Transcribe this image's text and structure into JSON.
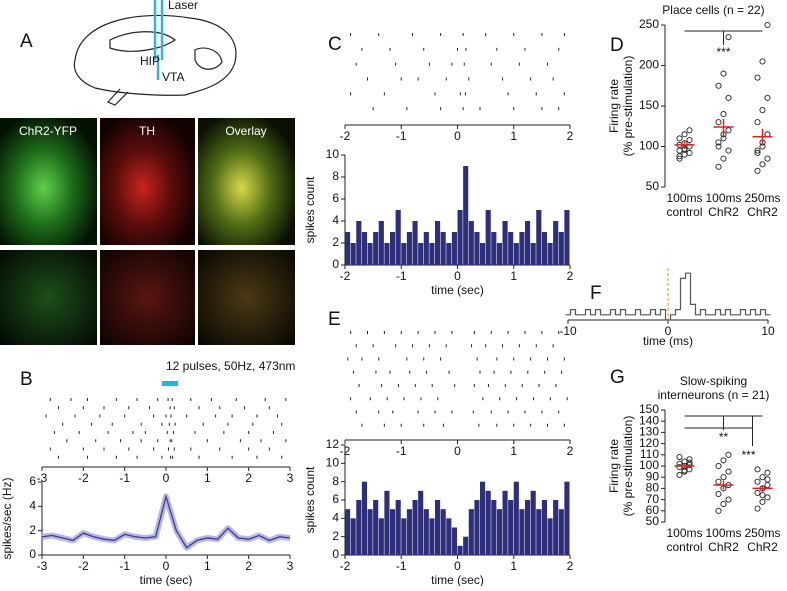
{
  "panel_labels": [
    "A",
    "B",
    "C",
    "D",
    "E",
    "F",
    "G"
  ],
  "figure_a": {
    "labels": [
      "Laser",
      "HIP",
      "VTA"
    ],
    "image_titles": [
      "ChR2-YFP",
      "TH",
      "Overlay"
    ]
  },
  "chart_data": [
    {
      "type": "raster",
      "annotation": "12 pulses, 50Hz, 473nm",
      "xlim": [
        -3,
        3
      ],
      "xticks": [
        -3,
        -2,
        -1,
        0,
        1,
        2,
        3
      ],
      "trials": [
        [
          -2.8,
          -2.3,
          -1.9,
          -1.2,
          -0.7,
          -0.2,
          0.05,
          0.15,
          0.6,
          1.1,
          1.7,
          2.4,
          2.9
        ],
        [
          -2.6,
          -2.0,
          -1.5,
          -0.9,
          -0.4,
          0.1,
          0.2,
          0.8,
          1.3,
          1.9,
          2.5
        ],
        [
          -2.9,
          -2.2,
          -1.6,
          -1.0,
          -0.3,
          0.0,
          0.12,
          0.5,
          1.2,
          1.6,
          2.2,
          2.7
        ],
        [
          -2.5,
          -1.8,
          -1.3,
          -0.6,
          -0.1,
          0.08,
          0.22,
          0.9,
          1.5,
          2.1,
          2.8
        ],
        [
          -2.7,
          -2.1,
          -1.4,
          -0.8,
          -0.5,
          0.03,
          0.18,
          0.7,
          1.4,
          2.0,
          2.6
        ],
        [
          -2.4,
          -1.7,
          -1.1,
          -0.6,
          -0.2,
          0.1,
          0.14,
          1.0,
          1.8,
          2.3,
          2.9
        ],
        [
          -2.8,
          -2.0,
          -1.5,
          -0.9,
          -0.3,
          0.06,
          0.2,
          0.6,
          1.3,
          2.0,
          2.5
        ],
        [
          -2.6,
          -1.9,
          -1.2,
          -0.7,
          -0.1,
          0.11,
          0.16,
          0.8,
          1.6,
          2.2,
          2.8
        ]
      ]
    },
    {
      "type": "line",
      "xlabel": "time (sec)",
      "ylabel": "spikes/sec (Hz)",
      "xlim": [
        -3,
        3
      ],
      "xticks": [
        -3,
        -2,
        -1,
        0,
        1,
        2,
        3
      ],
      "ylim": [
        0,
        6
      ],
      "yticks": [
        0,
        2,
        4,
        6
      ],
      "color": "#3b3b8c",
      "x": [
        -3,
        -2.75,
        -2.5,
        -2.25,
        -2,
        -1.75,
        -1.5,
        -1.25,
        -1,
        -0.75,
        -0.5,
        -0.25,
        0,
        0.25,
        0.5,
        0.75,
        1,
        1.25,
        1.5,
        1.75,
        2,
        2.25,
        2.5,
        2.75,
        3
      ],
      "values": [
        1.5,
        1.6,
        1.4,
        1.2,
        1.8,
        1.5,
        1.3,
        1.2,
        1.7,
        1.5,
        1.4,
        1.5,
        4.8,
        2.0,
        0.6,
        1.2,
        1.4,
        1.3,
        2.2,
        1.4,
        1.3,
        1.6,
        1.2,
        1.5,
        1.4
      ]
    },
    {
      "type": "raster",
      "xlim": [
        -2,
        2
      ],
      "xticks": [
        -2,
        -1,
        0,
        1,
        2
      ],
      "trials": [
        [
          -1.9,
          -1.4,
          -0.8,
          -0.3,
          0.1,
          0.5,
          1.0,
          1.5,
          1.9
        ],
        [
          -1.7,
          -1.2,
          -0.6,
          0.0,
          0.15,
          0.7,
          1.2,
          1.8
        ],
        [
          -1.8,
          -1.1,
          -0.5,
          -0.1,
          0.12,
          0.6,
          1.1,
          1.6
        ],
        [
          -1.6,
          -1.0,
          -0.7,
          -0.2,
          0.2,
          0.8,
          1.3,
          1.7
        ],
        [
          -1.9,
          -1.3,
          -0.4,
          0.05,
          0.14,
          0.9,
          1.4,
          1.9
        ],
        [
          -1.5,
          -0.9,
          -0.3,
          0.1,
          0.4,
          1.0,
          1.5,
          1.8
        ]
      ]
    },
    {
      "type": "histogram",
      "xlabel": "time (sec)",
      "ylabel": "spikes count",
      "xlim": [
        -2,
        2
      ],
      "xticks": [
        -2,
        -1,
        0,
        1,
        2
      ],
      "ylim": [
        0,
        10
      ],
      "yticks": [
        0,
        2,
        4,
        6,
        8,
        10
      ],
      "color": "#2e2e7a",
      "bins": [
        -2,
        -1.9,
        -1.8,
        -1.7,
        -1.6,
        -1.5,
        -1.4,
        -1.3,
        -1.2,
        -1.1,
        -1,
        -0.9,
        -0.8,
        -0.7,
        -0.6,
        -0.5,
        -0.4,
        -0.3,
        -0.2,
        -0.1,
        0,
        0.1,
        0.2,
        0.3,
        0.4,
        0.5,
        0.6,
        0.7,
        0.8,
        0.9,
        1,
        1.1,
        1.2,
        1.3,
        1.4,
        1.5,
        1.6,
        1.7,
        1.8,
        1.9,
        2
      ],
      "values": [
        3,
        2,
        4,
        3,
        2,
        3,
        4,
        2,
        3,
        5,
        2,
        3,
        4,
        2,
        3,
        2,
        4,
        3,
        2,
        3,
        5,
        9,
        4,
        3,
        2,
        5,
        3,
        2,
        4,
        3,
        2,
        3,
        4,
        2,
        5,
        3,
        2,
        4,
        3,
        5
      ]
    },
    {
      "type": "dot",
      "title": "Place cells (n = 22)",
      "ylabel": [
        "Firing rate",
        "(% pre-stimulation)"
      ],
      "categories": [
        "100ms",
        "100ms",
        "250ms"
      ],
      "category_sublabels": [
        "control",
        "ChR2",
        "ChR2"
      ],
      "ylim": [
        50,
        250
      ],
      "yticks": [
        50,
        100,
        150,
        200,
        250
      ],
      "annotations": [
        "***"
      ],
      "groups": [
        [
          85,
          90,
          92,
          95,
          97,
          100,
          102,
          104,
          108,
          110,
          115,
          120,
          88,
          96
        ],
        [
          75,
          85,
          95,
          100,
          110,
          120,
          130,
          140,
          160,
          175,
          190,
          235,
          105,
          115
        ],
        [
          70,
          78,
          85,
          95,
          105,
          115,
          130,
          145,
          160,
          185,
          205,
          250,
          92,
          100
        ]
      ],
      "means": [
        102,
        124,
        112
      ],
      "sems": [
        5,
        10,
        10
      ]
    },
    {
      "type": "raster",
      "xlim": [
        -2,
        2
      ],
      "xticks": [
        -2,
        -1,
        0,
        1,
        2
      ],
      "trials": [
        [
          -1.9,
          -1.6,
          -1.3,
          -1.0,
          -0.7,
          -0.4,
          -0.1,
          0.3,
          0.6,
          0.9,
          1.2,
          1.5,
          1.8
        ],
        [
          -1.8,
          -1.5,
          -1.1,
          -0.8,
          -0.5,
          -0.2,
          0.25,
          0.5,
          0.8,
          1.1,
          1.4,
          1.7
        ],
        [
          -1.95,
          -1.7,
          -1.4,
          -0.9,
          -0.6,
          -0.3,
          0.35,
          0.7,
          1.0,
          1.3,
          1.6,
          1.9
        ],
        [
          -1.85,
          -1.45,
          -1.2,
          -0.85,
          -0.55,
          -0.15,
          0.4,
          0.65,
          0.95,
          1.25,
          1.55,
          1.85
        ],
        [
          -1.75,
          -1.35,
          -1.05,
          -0.75,
          -0.45,
          -0.05,
          0.3,
          0.55,
          0.85,
          1.15,
          1.45,
          1.75
        ],
        [
          -1.9,
          -1.55,
          -1.25,
          -0.95,
          -0.65,
          -0.35,
          0.45,
          0.75,
          1.05,
          1.35,
          1.65,
          1.95
        ],
        [
          -1.8,
          -1.4,
          -1.15,
          -0.7,
          -0.4,
          -0.1,
          0.28,
          0.6,
          0.9,
          1.2,
          1.5,
          1.8
        ],
        [
          -1.7,
          -1.3,
          -1.0,
          -0.6,
          -0.25,
          0.38,
          0.7,
          1.0,
          1.3,
          1.6,
          1.9
        ]
      ]
    },
    {
      "type": "histogram",
      "xlabel": "time (sec)",
      "ylabel": "spikes count",
      "xlim": [
        -2,
        2
      ],
      "xticks": [
        -2,
        -1,
        0,
        1,
        2
      ],
      "ylim": [
        0,
        12
      ],
      "yticks": [
        0,
        2,
        4,
        6,
        8,
        10,
        12
      ],
      "color": "#2e2e7a",
      "bins": [
        -2,
        -1.9,
        -1.8,
        -1.7,
        -1.6,
        -1.5,
        -1.4,
        -1.3,
        -1.2,
        -1.1,
        -1,
        -0.9,
        -0.8,
        -0.7,
        -0.6,
        -0.5,
        -0.4,
        -0.3,
        -0.2,
        -0.1,
        0,
        0.1,
        0.2,
        0.3,
        0.4,
        0.5,
        0.6,
        0.7,
        0.8,
        0.9,
        1,
        1.1,
        1.2,
        1.3,
        1.4,
        1.5,
        1.6,
        1.7,
        1.8,
        1.9,
        2
      ],
      "values": [
        5,
        4,
        6,
        8,
        5,
        6,
        4,
        7,
        5,
        6,
        4,
        5,
        6,
        7,
        5,
        4,
        6,
        5,
        4,
        3,
        1,
        2,
        5,
        6,
        8,
        7,
        6,
        5,
        7,
        6,
        8,
        5,
        6,
        7,
        5,
        6,
        4,
        6,
        5,
        8
      ]
    },
    {
      "type": "step",
      "xlabel": "time (ms)",
      "xlim": [
        -10,
        10
      ],
      "xticks": [
        -10,
        0,
        10
      ],
      "ylim": [
        0,
        10
      ],
      "color": "#555555",
      "x": [
        -10,
        -9.5,
        -9,
        -8.5,
        -8,
        -7.5,
        -7,
        -6.5,
        -6,
        -5.5,
        -5,
        -4.5,
        -4,
        -3.5,
        -3,
        -2.5,
        -2,
        -1.5,
        -1,
        -0.5,
        0,
        0.5,
        1,
        1.5,
        2,
        2.5,
        3,
        3.5,
        4,
        4.5,
        5,
        5.5,
        6,
        6.5,
        7,
        7.5,
        8,
        8.5,
        9,
        9.5,
        10
      ],
      "values": [
        1,
        2,
        1,
        1,
        2,
        1,
        2,
        1,
        1,
        2,
        1,
        2,
        1,
        1,
        2,
        1,
        1,
        2,
        1,
        2,
        0,
        1,
        2,
        8,
        9,
        3,
        1,
        2,
        1,
        1,
        2,
        1,
        2,
        1,
        1,
        2,
        1,
        2,
        1,
        2,
        1
      ]
    },
    {
      "type": "dot",
      "title": [
        "Slow-spiking",
        "interneurons (n = 21)"
      ],
      "ylabel": [
        "Firing rate",
        "(% pre-stimulation)"
      ],
      "categories": [
        "100ms",
        "100ms",
        "250ms"
      ],
      "category_sublabels": [
        "control",
        "ChR2",
        "ChR2"
      ],
      "ylim": [
        50,
        150
      ],
      "yticks": [
        50,
        60,
        70,
        80,
        90,
        100,
        110,
        120,
        130,
        140,
        150
      ],
      "annotations": [
        "**",
        "***"
      ],
      "groups": [
        [
          92,
          95,
          97,
          99,
          100,
          101,
          102,
          104,
          106,
          108,
          96,
          103
        ],
        [
          60,
          66,
          70,
          75,
          80,
          83,
          86,
          90,
          95,
          100,
          105,
          110
        ],
        [
          62,
          68,
          72,
          76,
          80,
          83,
          86,
          90,
          94,
          97,
          74,
          88
        ]
      ],
      "means": [
        100,
        83,
        80
      ],
      "sems": [
        2,
        4,
        3
      ]
    }
  ]
}
